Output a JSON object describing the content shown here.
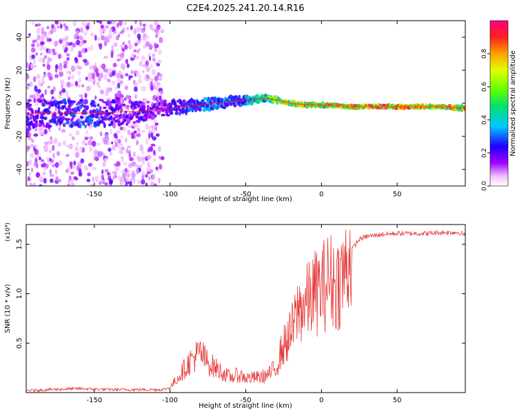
{
  "title": "C2E4.2025.241.20.14.R16",
  "chart_data": [
    {
      "type": "heatmap",
      "name": "spectrogram",
      "xlabel": "Height of straight line (km)",
      "ylabel": "Frequency (Hz)",
      "xlim": [
        -195,
        95
      ],
      "ylim": [
        -50,
        50
      ],
      "xticks": [
        -150,
        -100,
        -50,
        0,
        50
      ],
      "yticks": [
        -40,
        -20,
        0,
        20,
        40
      ],
      "colorbar": {
        "label": "Normalized spectral amplitude",
        "range": [
          0,
          1
        ],
        "ticks": [
          0.0,
          0.2,
          0.4,
          0.6,
          0.8
        ],
        "tick_labels": [
          "0.0",
          "0.2",
          "0.4",
          "0.6",
          "0.8"
        ]
      },
      "ridge": {
        "x": [
          -190,
          -170,
          -150,
          -130,
          -120,
          -110,
          -100,
          -90,
          -80,
          -70,
          -60,
          -50,
          -45,
          -40,
          -35,
          -30,
          -25,
          -20,
          -10,
          0,
          20,
          40,
          60,
          80,
          95
        ],
        "freq": [
          -6,
          -6,
          -6,
          -5,
          -5,
          -4,
          -3,
          -2,
          -1,
          0,
          1,
          2,
          2,
          3,
          3,
          2,
          1,
          0,
          -1,
          -1,
          -2,
          -2,
          -2,
          -2,
          -3
        ],
        "amplitude": [
          0.25,
          0.3,
          0.3,
          0.2,
          0.25,
          0.2,
          0.25,
          0.3,
          0.35,
          0.35,
          0.35,
          0.4,
          0.5,
          0.55,
          0.6,
          0.7,
          0.75,
          0.8,
          0.85,
          0.9,
          0.95,
          0.95,
          0.95,
          0.9,
          0.85
        ],
        "spread": [
          16,
          16,
          16,
          16,
          12,
          10,
          9,
          8,
          7,
          7,
          6,
          5,
          4,
          4,
          3,
          3,
          2,
          2,
          2,
          1.5,
          1.5,
          1.5,
          1.5,
          1.5,
          2
        ]
      }
    },
    {
      "type": "line",
      "name": "snr",
      "xlabel": "Height of straight line (km)",
      "ylabel": "SNR (10 * v/v)",
      "multiplier": "(x10⁴)",
      "xlim": [
        -195,
        95
      ],
      "ylim": [
        0,
        1.7
      ],
      "xticks": [
        -150,
        -100,
        -50,
        0,
        50
      ],
      "yticks": [
        0.5,
        1.0,
        1.5
      ],
      "ytick_labels": [
        "0.5",
        "1.0",
        "1.5"
      ],
      "color": "#e53535",
      "series": [
        {
          "name": "SNR",
          "x": [
            -195,
            -180,
            -160,
            -140,
            -120,
            -105,
            -100,
            -95,
            -90,
            -85,
            -80,
            -75,
            -70,
            -65,
            -60,
            -55,
            -50,
            -45,
            -40,
            -35,
            -30,
            -27,
            -24,
            -20,
            -15,
            -10,
            -5,
            0,
            5,
            10,
            15,
            20,
            25,
            30,
            40,
            50,
            60,
            70,
            80,
            90,
            95
          ],
          "y": [
            0.02,
            0.03,
            0.04,
            0.03,
            0.03,
            0.03,
            0.05,
            0.15,
            0.25,
            0.35,
            0.4,
            0.3,
            0.25,
            0.2,
            0.15,
            0.18,
            0.15,
            0.15,
            0.16,
            0.18,
            0.25,
            0.4,
            0.5,
            0.6,
            0.85,
            0.9,
            1.0,
            1.05,
            1.15,
            1.1,
            1.2,
            1.45,
            1.55,
            1.58,
            1.6,
            1.61,
            1.61,
            1.61,
            1.62,
            1.62,
            1.6
          ]
        }
      ]
    }
  ]
}
